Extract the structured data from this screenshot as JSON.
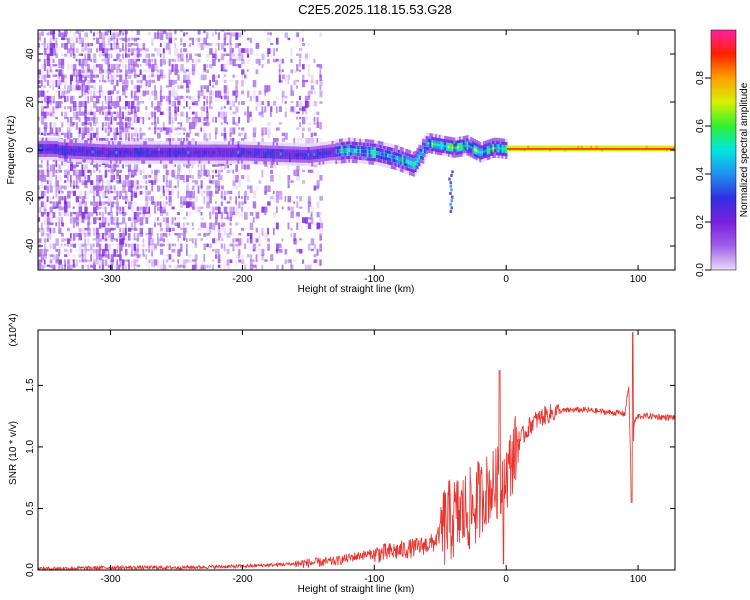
{
  "title": "C2E5.2025.118.15.53.G28",
  "colors": {
    "trace": "#e8332e",
    "ridge": "#d81414",
    "background": "#ffffff"
  },
  "chart_data": [
    {
      "type": "heatmap",
      "xlabel": "Height of straight line (km)",
      "ylabel": "Frequency (Hz)",
      "xlim": [
        -355,
        128
      ],
      "ylim": [
        -50,
        50
      ],
      "x_ticks": [
        -300,
        -200,
        -100,
        0,
        100
      ],
      "y_ticks": [
        -40,
        -20,
        0,
        20,
        40
      ],
      "colorbar": {
        "label": "Normalized spectral amplitude",
        "range": [
          0,
          1
        ],
        "ticks": [
          "0.0",
          "0.2",
          "0.4",
          "0.6",
          "0.8"
        ],
        "palette": [
          "#e8d8f8",
          "#a060e8",
          "#7a20e0",
          "#3030e0",
          "#2090f0",
          "#00e8e0",
          "#30f030",
          "#d8f000",
          "#ffa000",
          "#ff2000",
          "#ff20a0"
        ]
      },
      "ridge_center_hz": [
        {
          "x": -340,
          "y": 0
        },
        {
          "x": -300,
          "y": -1
        },
        {
          "x": -250,
          "y": -1
        },
        {
          "x": -200,
          "y": -1
        },
        {
          "x": -150,
          "y": -2
        },
        {
          "x": -120,
          "y": 0
        },
        {
          "x": -100,
          "y": -1
        },
        {
          "x": -85,
          "y": -3
        },
        {
          "x": -70,
          "y": -6
        },
        {
          "x": -60,
          "y": 3
        },
        {
          "x": -50,
          "y": 2
        },
        {
          "x": -40,
          "y": 1
        },
        {
          "x": -30,
          "y": 2
        },
        {
          "x": -20,
          "y": -1
        },
        {
          "x": -10,
          "y": 1
        },
        {
          "x": 0,
          "y": 0.5
        },
        {
          "x": 50,
          "y": 0.5
        },
        {
          "x": 100,
          "y": 0.5
        },
        {
          "x": 128,
          "y": 0.5
        }
      ],
      "noise_band_x": [
        -355,
        -140
      ]
    },
    {
      "type": "line",
      "xlabel": "Height of straight line (km)",
      "ylabel": "SNR (10 * v/v)",
      "y_multiplier": "(x10^4)",
      "xlim": [
        -355,
        128
      ],
      "ylim": [
        0,
        1.95
      ],
      "x_ticks": [
        -300,
        -200,
        -100,
        0,
        100
      ],
      "y_ticks": [
        0.0,
        0.5,
        1.0,
        1.5
      ],
      "series": [
        {
          "x": [
            -355,
            -300,
            -250,
            -200,
            -160,
            -130,
            -110,
            -90,
            -70,
            -55,
            -45,
            -35,
            -25,
            -15,
            -5,
            0,
            5,
            10,
            20,
            30,
            40,
            50,
            60,
            70,
            80,
            90,
            93,
            95,
            97,
            100,
            110,
            120,
            128
          ],
          "y": [
            0.01,
            0.02,
            0.02,
            0.03,
            0.05,
            0.07,
            0.12,
            0.14,
            0.18,
            0.22,
            0.38,
            0.45,
            0.5,
            0.65,
            0.72,
            0.75,
            0.92,
            1.05,
            1.2,
            1.26,
            1.29,
            1.3,
            1.3,
            1.29,
            1.28,
            1.27,
            1.5,
            0.55,
            1.2,
            1.25,
            1.25,
            1.24,
            1.24
          ]
        }
      ]
    }
  ]
}
